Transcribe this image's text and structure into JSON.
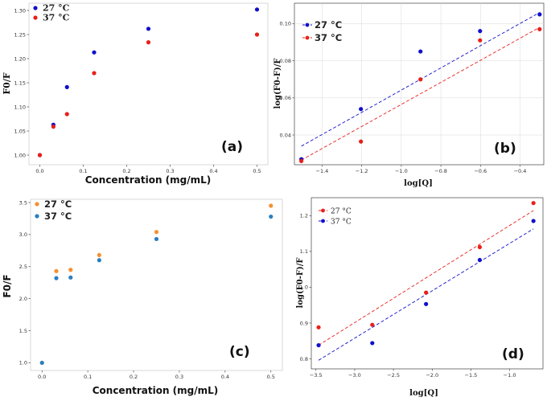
{
  "chart_data": [
    {
      "id": "a",
      "type": "scatter",
      "panel_label": "(a)",
      "xlabel": "Concentration (mg/mL)",
      "ylabel": "F0/F",
      "xlim": [
        -0.025,
        0.525
      ],
      "ylim": [
        0.98,
        1.315
      ],
      "xticks": [
        "0.0",
        "0.1",
        "0.2",
        "0.3",
        "0.4",
        "0.5"
      ],
      "yticks": [
        "1.00",
        "1.05",
        "1.10",
        "1.15",
        "1.20",
        "1.25",
        "1.30"
      ],
      "legend_position": "top-left",
      "series": [
        {
          "name": "27 °C",
          "color": "#1010cc",
          "x": [
            0,
            0.03125,
            0.0625,
            0.125,
            0.25,
            0.5
          ],
          "y": [
            1.0,
            1.063,
            1.141,
            1.213,
            1.262,
            1.302
          ]
        },
        {
          "name": "37 °C",
          "color": "#e8201a",
          "x": [
            0,
            0.03125,
            0.0625,
            0.125,
            0.25,
            0.5
          ],
          "y": [
            1.0,
            1.059,
            1.085,
            1.17,
            1.234,
            1.25
          ]
        }
      ]
    },
    {
      "id": "b",
      "type": "scatter",
      "panel_label": "(b)",
      "xlabel": "log[Q]",
      "ylabel": "log(F0-F)/F",
      "xlim": [
        -1.54,
        -0.28
      ],
      "ylim": [
        0.024,
        0.111
      ],
      "xticks": [
        "-1.4",
        "-1.2",
        "-1.0",
        "-0.8",
        "-0.6",
        "-0.4"
      ],
      "yticks": [
        "0.04",
        "0.06",
        "0.08",
        "0.10"
      ],
      "grid": true,
      "legend_position": "top-left",
      "series": [
        {
          "name": "27 °C",
          "color": "#1010cc",
          "x": [
            -1.505,
            -1.204,
            -0.903,
            -0.602,
            -0.301
          ],
          "y": [
            0.027,
            0.054,
            0.085,
            0.096,
            0.105
          ],
          "fit": {
            "x": [
              -1.505,
              -0.301
            ],
            "y": [
              0.034,
              0.106
            ]
          }
        },
        {
          "name": "37 °C",
          "color": "#e8201a",
          "x": [
            -1.505,
            -1.204,
            -0.903,
            -0.602,
            -0.301
          ],
          "y": [
            0.026,
            0.0365,
            0.07,
            0.091,
            0.097
          ],
          "fit": {
            "x": [
              -1.505,
              -0.301
            ],
            "y": [
              0.0265,
              0.098
            ]
          }
        }
      ]
    },
    {
      "id": "c",
      "type": "scatter",
      "panel_label": "(c)",
      "xlabel": "Concentration (mg/mL)",
      "ylabel": "F0/F",
      "xlim": [
        -0.025,
        0.525
      ],
      "ylim": [
        0.88,
        3.55
      ],
      "xticks": [
        "0.0",
        "0.1",
        "0.2",
        "0.3",
        "0.4",
        "0.5"
      ],
      "yticks": [
        "1.0",
        "1.5",
        "2.0",
        "2.5",
        "3.0",
        "3.5"
      ],
      "legend_position": "top-left",
      "series": [
        {
          "name": "27 °C",
          "color": "#f5912f",
          "x": [
            0,
            0.03125,
            0.0625,
            0.125,
            0.25,
            0.5
          ],
          "y": [
            1.0,
            2.43,
            2.45,
            2.68,
            3.04,
            3.45
          ]
        },
        {
          "name": "37 °C",
          "color": "#2a7fbf",
          "x": [
            0,
            0.03125,
            0.0625,
            0.125,
            0.25,
            0.5
          ],
          "y": [
            1.0,
            2.32,
            2.33,
            2.6,
            2.93,
            3.28
          ]
        }
      ]
    },
    {
      "id": "d",
      "type": "scatter",
      "panel_label": "(d)",
      "xlabel": "log[Q]",
      "ylabel": "log(F0-F)/F",
      "xlim": [
        -3.56,
        -0.57
      ],
      "ylim": [
        0.772,
        1.25
      ],
      "xticks": [
        "-3.5",
        "-3.0",
        "-2.5",
        "-2.0",
        "-1.5",
        "-1.0"
      ],
      "yticks": [
        "0.8",
        "0.9",
        "1.0",
        "1.1",
        "1.2"
      ],
      "legend_position": "top-left",
      "series": [
        {
          "name": "27 °C",
          "color": "#e8201a",
          "x": [
            -3.466,
            -2.773,
            -2.079,
            -1.386,
            -0.693
          ],
          "y": [
            0.888,
            0.895,
            0.985,
            1.112,
            1.235
          ],
          "fit": {
            "x": [
              -3.466,
              -0.693
            ],
            "y": [
              0.838,
              1.214
            ]
          }
        },
        {
          "name": "37 °C",
          "color": "#1010cc",
          "x": [
            -3.466,
            -2.773,
            -2.079,
            -1.386,
            -0.693
          ],
          "y": [
            0.838,
            0.844,
            0.953,
            1.076,
            1.185
          ],
          "fit": {
            "x": [
              -3.466,
              -0.693
            ],
            "y": [
              0.796,
              1.163
            ]
          }
        }
      ]
    }
  ]
}
